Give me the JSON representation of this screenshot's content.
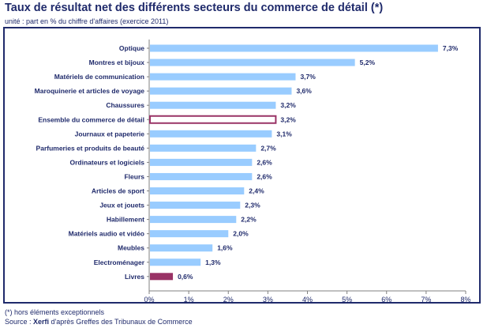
{
  "title": "Taux de résultat net des différents secteurs du commerce de détail (*)",
  "subtitle": "unité : part en % du chiffre d'affaires (exercice 2011)",
  "footnote": "(*) hors éléments exceptionnels",
  "source": {
    "prefix": "Source : ",
    "brand": "Xerfi",
    "suffix": " d'après Greffes des Tribunaux de Commerce"
  },
  "colors": {
    "bar": "#99ccff",
    "highlight_fill": "#ffffff",
    "highlight_border": "#993366",
    "last_bar": "#993366",
    "text": "#1f2a6b",
    "frame": "#1f2a6b",
    "grid": "#c0c0c0"
  },
  "chart_data": {
    "type": "bar",
    "orientation": "horizontal",
    "categories": [
      "Optique",
      "Montres et bijoux",
      "Matériels de communication",
      "Maroquinerie et articles de voyage",
      "Chaussures",
      "Ensemble du commerce de détail",
      "Journaux et papeterie",
      "Parfumeries et produits de beauté",
      "Ordinateurs et logiciels",
      "Fleurs",
      "Articles de sport",
      "Jeux et jouets",
      "Habillement",
      "Matériels audio et vidéo",
      "Meubles",
      "Electroménager",
      "Livres"
    ],
    "values": [
      7.3,
      5.2,
      3.7,
      3.6,
      3.2,
      3.2,
      3.1,
      2.7,
      2.6,
      2.6,
      2.4,
      2.3,
      2.2,
      2.0,
      1.6,
      1.3,
      0.6
    ],
    "value_labels": [
      "7,3%",
      "5,2%",
      "3,7%",
      "3,6%",
      "3,2%",
      "3,2%",
      "3,1%",
      "2,7%",
      "2,6%",
      "2,6%",
      "2,4%",
      "2,3%",
      "2,2%",
      "2,0%",
      "1,6%",
      "1,3%",
      "0,6%"
    ],
    "highlight_category": "Ensemble du commerce de détail",
    "dark_category": "Livres",
    "xlim": [
      0,
      8
    ],
    "x_ticks": [
      0,
      1,
      2,
      3,
      4,
      5,
      6,
      7,
      8
    ],
    "x_tick_labels": [
      "0%",
      "1%",
      "2%",
      "3%",
      "4%",
      "5%",
      "6%",
      "7%",
      "8%"
    ],
    "grid": false,
    "legend": "none"
  }
}
